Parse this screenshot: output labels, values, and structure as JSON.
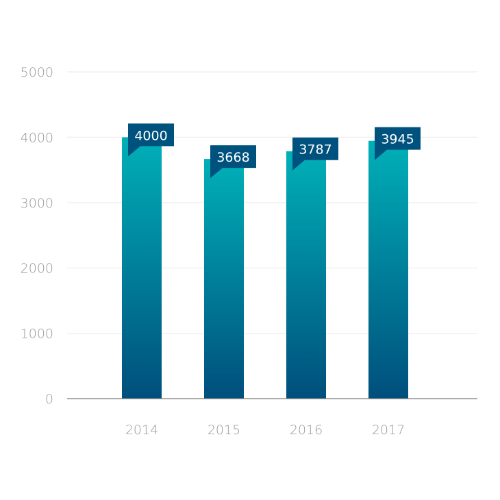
{
  "chart_data": {
    "type": "bar",
    "categories": [
      "2014",
      "2015",
      "2016",
      "2017"
    ],
    "values": [
      4000,
      3668,
      3787,
      3945
    ],
    "data_labels": [
      "4000",
      "3668",
      "3787",
      "3945"
    ],
    "yticks": [
      "0",
      "1000",
      "2000",
      "3000",
      "4000",
      "5000"
    ],
    "ylim": [
      0,
      5000
    ],
    "grid": true,
    "legend": "none",
    "colors": {
      "bar_top": "#00b0b8",
      "bar_bottom": "#004f7c",
      "label_bg": "#00527e",
      "grid": "#eeeeee",
      "axis": "#7a7a7a",
      "text": "#9a9a9a"
    }
  }
}
